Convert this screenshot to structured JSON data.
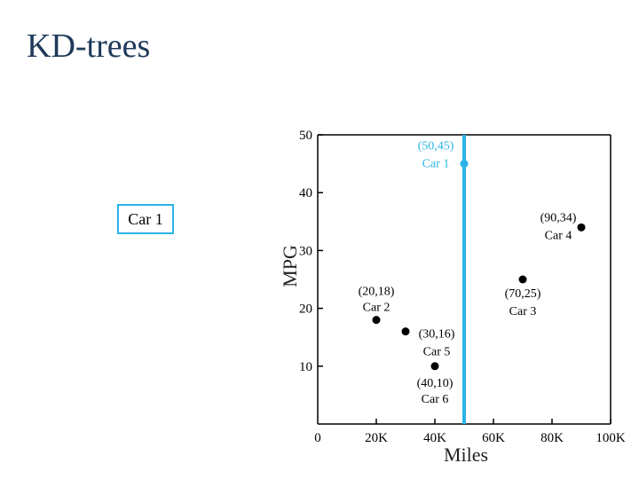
{
  "title": "KD-trees",
  "node_box_label": "Car 1",
  "colors": {
    "title": "#1f3a5a",
    "accent": "#2bb3e6",
    "highlight_point": "#2bb3e6",
    "point": "#000000"
  },
  "chart_data": {
    "type": "scatter",
    "title": "",
    "xlabel": "Miles",
    "ylabel": "MPG",
    "xlim": [
      0,
      100
    ],
    "ylim": [
      0,
      50
    ],
    "xticks": [
      20,
      40,
      60,
      80,
      100
    ],
    "xtick_labels": [
      "20K",
      "40K",
      "60K",
      "80K",
      "100K"
    ],
    "yticks": [
      10,
      20,
      30,
      40,
      50
    ],
    "ytick_labels": [
      "10",
      "20",
      "30",
      "40",
      "50"
    ],
    "origin_label": "0",
    "split_line": {
      "axis": "x",
      "value": 50
    },
    "points": [
      {
        "x": 50,
        "y": 45,
        "coord": "(50,45)",
        "name": "Car 1",
        "highlight": true,
        "label_side": "left",
        "label_dy": -2
      },
      {
        "x": 90,
        "y": 34,
        "coord": "(90,34)",
        "name": "Car 4",
        "highlight": false,
        "label_side": "left",
        "label_dy": -2
      },
      {
        "x": 70,
        "y": 25,
        "coord": "(70,25)",
        "name": "Car 3",
        "highlight": false,
        "label_side": "below",
        "label_dy": 0
      },
      {
        "x": 20,
        "y": 18,
        "coord": "(20,18)",
        "name": "Car 2",
        "highlight": false,
        "label_side": "above",
        "label_dy": 0
      },
      {
        "x": 30,
        "y": 16,
        "coord": "(30,16)",
        "name": "Car 5",
        "highlight": false,
        "label_side": "right",
        "label_dy": 2
      },
      {
        "x": 40,
        "y": 10,
        "coord": "(40,10)",
        "name": "Car 6",
        "highlight": false,
        "label_side": "below",
        "label_dy": 0
      }
    ]
  }
}
